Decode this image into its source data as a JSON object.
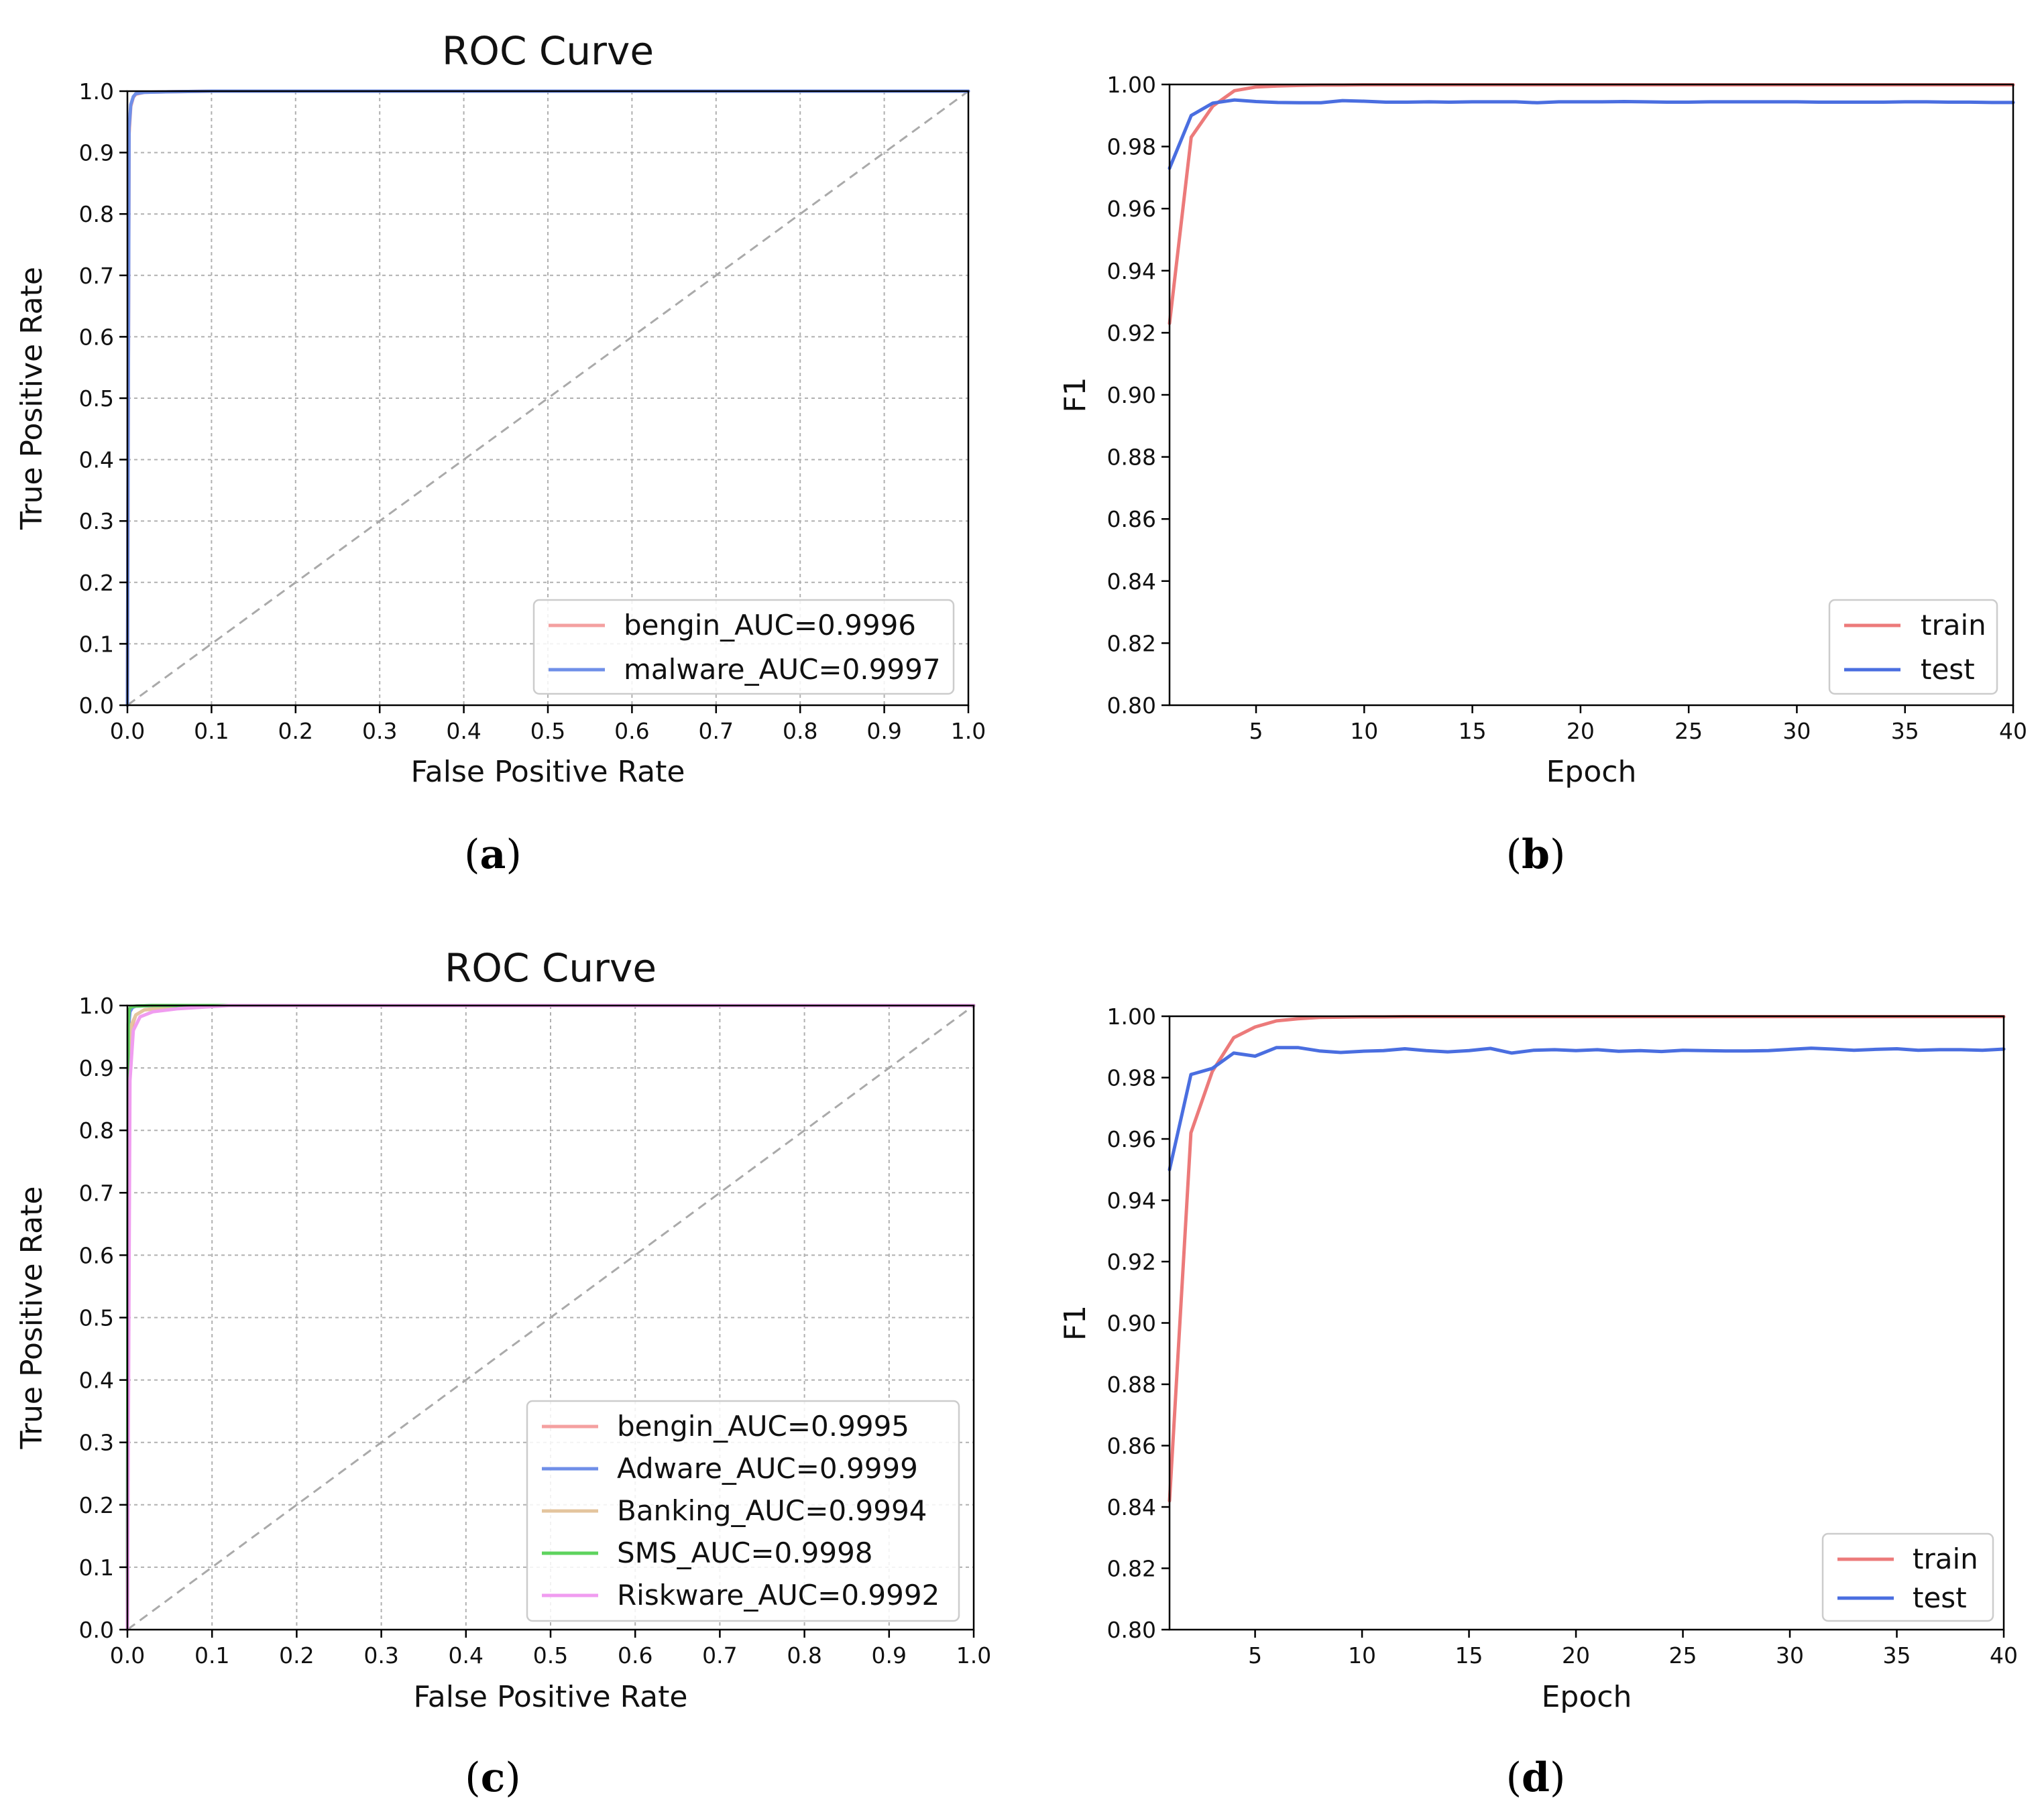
{
  "captions": [
    "a",
    "b",
    "c",
    "d"
  ],
  "chart_data": [
    {
      "panel": "a",
      "type": "line",
      "title": "ROC Curve",
      "xlabel": "False Positive Rate",
      "ylabel": "True Positive Rate",
      "xlim": [
        0,
        1
      ],
      "ylim": [
        0,
        1
      ],
      "xticks": [
        0.0,
        0.1,
        0.2,
        0.3,
        0.4,
        0.5,
        0.6,
        0.7,
        0.8,
        0.9,
        1.0
      ],
      "xtick_labels": [
        "0.0",
        "0.1",
        "0.2",
        "0.3",
        "0.4",
        "0.5",
        "0.6",
        "0.7",
        "0.8",
        "0.9",
        "1.0"
      ],
      "yticks": [
        0.0,
        0.1,
        0.2,
        0.3,
        0.4,
        0.5,
        0.6,
        0.7,
        0.8,
        0.9,
        1.0
      ],
      "ytick_labels": [
        "0.0",
        "0.1",
        "0.2",
        "0.3",
        "0.4",
        "0.5",
        "0.6",
        "0.7",
        "0.8",
        "0.9",
        "1.0"
      ],
      "grid": true,
      "diagonal": true,
      "legend_position": "lower-right",
      "series": [
        {
          "name": "bengin_AUC=0.9996",
          "color": "#f4a0a0",
          "x": [
            0,
            0.002,
            0.004,
            0.007,
            0.01,
            0.02,
            0.05,
            0.1,
            1.0
          ],
          "y": [
            0,
            0.93,
            0.975,
            0.99,
            0.995,
            0.998,
            0.999,
            1.0,
            1.0
          ]
        },
        {
          "name": "malware_AUC=0.9997",
          "color": "#6f8fe8",
          "x": [
            0,
            0.002,
            0.004,
            0.007,
            0.01,
            0.02,
            0.05,
            0.1,
            1.0
          ],
          "y": [
            0,
            0.94,
            0.978,
            0.991,
            0.996,
            0.998,
            0.999,
            1.0,
            1.0
          ]
        }
      ]
    },
    {
      "panel": "b",
      "type": "line",
      "title": "",
      "xlabel": "Epoch",
      "ylabel": "F1",
      "xlim": [
        1,
        40
      ],
      "ylim": [
        0.8,
        1.0
      ],
      "xticks": [
        5,
        10,
        15,
        20,
        25,
        30,
        35,
        40
      ],
      "xtick_labels": [
        "5",
        "10",
        "15",
        "20",
        "25",
        "30",
        "35",
        "40"
      ],
      "yticks": [
        0.8,
        0.82,
        0.84,
        0.86,
        0.88,
        0.9,
        0.92,
        0.94,
        0.96,
        0.98,
        1.0
      ],
      "ytick_labels": [
        "0.80",
        "0.82",
        "0.84",
        "0.86",
        "0.88",
        "0.90",
        "0.92",
        "0.94",
        "0.96",
        "0.98",
        "1.00"
      ],
      "grid": false,
      "diagonal": false,
      "legend_position": "lower-right",
      "series": [
        {
          "name": "train",
          "color": "#ec7a7a",
          "x": [
            1,
            2,
            3,
            4,
            5,
            6,
            7,
            8,
            9,
            10,
            11,
            12,
            13,
            14,
            15,
            16,
            17,
            18,
            19,
            20,
            21,
            22,
            23,
            24,
            25,
            26,
            27,
            28,
            29,
            30,
            31,
            32,
            33,
            34,
            35,
            36,
            37,
            38,
            39,
            40
          ],
          "y": [
            0.923,
            0.983,
            0.993,
            0.998,
            0.9992,
            0.9995,
            0.9997,
            0.9998,
            0.9998,
            0.9999,
            0.9999,
            0.9999,
            0.9999,
            0.9999,
            0.9999,
            0.9999,
            0.9999,
            0.9999,
            0.9999,
            0.9999,
            0.9999,
            0.9999,
            0.9999,
            0.9999,
            0.9999,
            0.9999,
            0.9999,
            0.9999,
            0.9999,
            0.9999,
            0.9999,
            0.9999,
            0.9999,
            0.9999,
            0.9999,
            0.9999,
            0.9999,
            0.9999,
            0.9999,
            0.9999
          ]
        },
        {
          "name": "test",
          "color": "#4a6ee0",
          "x": [
            1,
            2,
            3,
            4,
            5,
            6,
            7,
            8,
            9,
            10,
            11,
            12,
            13,
            14,
            15,
            16,
            17,
            18,
            19,
            20,
            21,
            22,
            23,
            24,
            25,
            26,
            27,
            28,
            29,
            30,
            31,
            32,
            33,
            34,
            35,
            36,
            37,
            38,
            39,
            40
          ],
          "y": [
            0.973,
            0.99,
            0.994,
            0.995,
            0.9945,
            0.9942,
            0.9941,
            0.9941,
            0.9948,
            0.9946,
            0.9943,
            0.9943,
            0.9944,
            0.9943,
            0.9944,
            0.9944,
            0.9944,
            0.9941,
            0.9944,
            0.9944,
            0.9944,
            0.9945,
            0.9944,
            0.9943,
            0.9943,
            0.9944,
            0.9944,
            0.9944,
            0.9944,
            0.9944,
            0.9943,
            0.9943,
            0.9943,
            0.9943,
            0.9944,
            0.9944,
            0.9943,
            0.9943,
            0.9942,
            0.9942
          ]
        }
      ]
    },
    {
      "panel": "c",
      "type": "line",
      "title": "ROC Curve",
      "xlabel": "False Positive Rate",
      "ylabel": "True Positive Rate",
      "xlim": [
        0,
        1
      ],
      "ylim": [
        0,
        1
      ],
      "xticks": [
        0.0,
        0.1,
        0.2,
        0.3,
        0.4,
        0.5,
        0.6,
        0.7,
        0.8,
        0.9,
        1.0
      ],
      "xtick_labels": [
        "0.0",
        "0.1",
        "0.2",
        "0.3",
        "0.4",
        "0.5",
        "0.6",
        "0.7",
        "0.8",
        "0.9",
        "1.0"
      ],
      "yticks": [
        0.0,
        0.1,
        0.2,
        0.3,
        0.4,
        0.5,
        0.6,
        0.7,
        0.8,
        0.9,
        1.0
      ],
      "ytick_labels": [
        "0.0",
        "0.1",
        "0.2",
        "0.3",
        "0.4",
        "0.5",
        "0.6",
        "0.7",
        "0.8",
        "0.9",
        "1.0"
      ],
      "grid": true,
      "diagonal": true,
      "legend_position": "lower-right",
      "series": [
        {
          "name": "bengin_AUC=0.9995",
          "color": "#f4a0a0",
          "x": [
            0,
            0.002,
            0.005,
            0.01,
            0.02,
            0.05,
            0.1,
            1.0
          ],
          "y": [
            0,
            0.9,
            0.965,
            0.985,
            0.993,
            0.998,
            1.0,
            1.0
          ]
        },
        {
          "name": "Adware_AUC=0.9999",
          "color": "#6f8fe8",
          "x": [
            0,
            0.001,
            0.003,
            0.006,
            0.01,
            0.03,
            1.0
          ],
          "y": [
            0,
            0.96,
            0.99,
            0.997,
            0.999,
            1.0,
            1.0
          ]
        },
        {
          "name": "Banking_AUC=0.9994",
          "color": "#e4c59e",
          "x": [
            0,
            0.002,
            0.005,
            0.01,
            0.02,
            0.05,
            0.1,
            1.0
          ],
          "y": [
            0,
            0.92,
            0.97,
            0.985,
            0.993,
            0.997,
            1.0,
            1.0
          ]
        },
        {
          "name": "SMS_AUC=0.9998",
          "color": "#5ed35e",
          "x": [
            0,
            0.001,
            0.002,
            0.004,
            0.01,
            0.03,
            1.0
          ],
          "y": [
            0,
            0.97,
            0.993,
            0.998,
            0.999,
            1.0,
            1.0
          ]
        },
        {
          "name": "Riskware_AUC=0.9992",
          "color": "#f09cf0",
          "x": [
            0,
            0.003,
            0.007,
            0.015,
            0.03,
            0.06,
            0.12,
            1.0
          ],
          "y": [
            0,
            0.88,
            0.96,
            0.982,
            0.99,
            0.995,
            1.0,
            1.0
          ]
        }
      ]
    },
    {
      "panel": "d",
      "type": "line",
      "title": "",
      "xlabel": "Epoch",
      "ylabel": "F1",
      "xlim": [
        1,
        40
      ],
      "ylim": [
        0.8,
        1.0
      ],
      "xticks": [
        5,
        10,
        15,
        20,
        25,
        30,
        35,
        40
      ],
      "xtick_labels": [
        "5",
        "10",
        "15",
        "20",
        "25",
        "30",
        "35",
        "40"
      ],
      "yticks": [
        0.8,
        0.82,
        0.84,
        0.86,
        0.88,
        0.9,
        0.92,
        0.94,
        0.96,
        0.98,
        1.0
      ],
      "ytick_labels": [
        "0.80",
        "0.82",
        "0.84",
        "0.86",
        "0.88",
        "0.90",
        "0.92",
        "0.94",
        "0.96",
        "0.98",
        "1.00"
      ],
      "grid": false,
      "diagonal": false,
      "legend_position": "lower-right",
      "series": [
        {
          "name": "train",
          "color": "#ec7a7a",
          "x": [
            1,
            2,
            3,
            4,
            5,
            6,
            7,
            8,
            9,
            10,
            11,
            12,
            13,
            14,
            15,
            16,
            17,
            18,
            19,
            20,
            21,
            22,
            23,
            24,
            25,
            26,
            27,
            28,
            29,
            30,
            31,
            32,
            33,
            34,
            35,
            36,
            37,
            38,
            39,
            40
          ],
          "y": [
            0.842,
            0.962,
            0.982,
            0.993,
            0.9965,
            0.9985,
            0.9992,
            0.9996,
            0.9997,
            0.9998,
            0.9998,
            0.9999,
            0.9999,
            0.9999,
            0.9999,
            0.9999,
            0.9999,
            0.9999,
            0.9999,
            0.9999,
            0.9999,
            0.9999,
            0.9999,
            0.9999,
            0.9999,
            0.9999,
            0.9999,
            0.9999,
            0.9999,
            0.9999,
            0.9999,
            0.9999,
            0.9999,
            0.9999,
            0.9999,
            0.9999,
            0.9999,
            0.9999,
            0.9999,
            0.9999
          ]
        },
        {
          "name": "test",
          "color": "#4a6ee0",
          "x": [
            1,
            2,
            3,
            4,
            5,
            6,
            7,
            8,
            9,
            10,
            11,
            12,
            13,
            14,
            15,
            16,
            17,
            18,
            19,
            20,
            21,
            22,
            23,
            24,
            25,
            26,
            27,
            28,
            29,
            30,
            31,
            32,
            33,
            34,
            35,
            36,
            37,
            38,
            39,
            40
          ],
          "y": [
            0.95,
            0.981,
            0.983,
            0.988,
            0.987,
            0.9898,
            0.9898,
            0.9887,
            0.9882,
            0.9886,
            0.9888,
            0.9894,
            0.9888,
            0.9884,
            0.9888,
            0.9895,
            0.988,
            0.9889,
            0.9891,
            0.9888,
            0.9891,
            0.9886,
            0.9888,
            0.9885,
            0.9889,
            0.9888,
            0.9887,
            0.9887,
            0.9888,
            0.9892,
            0.9896,
            0.9893,
            0.9889,
            0.9892,
            0.9894,
            0.9889,
            0.9891,
            0.9891,
            0.9889,
            0.9893
          ]
        }
      ]
    }
  ]
}
